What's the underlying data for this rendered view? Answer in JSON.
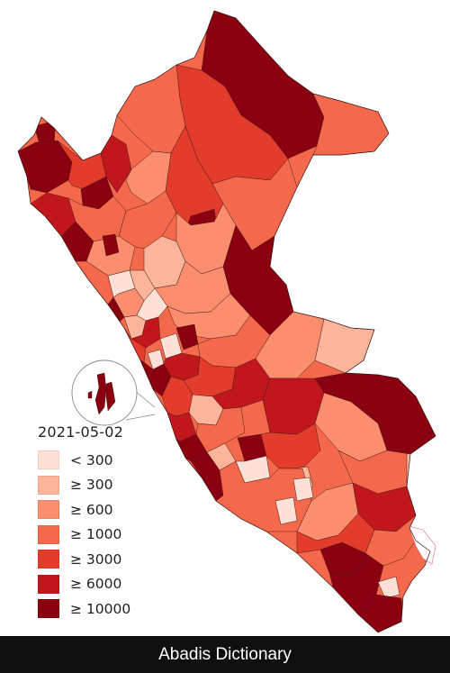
{
  "legend": {
    "title": "2021-05-02",
    "items": [
      {
        "label": "< 300",
        "color": "#fde0d6"
      },
      {
        "label": "≥ 300",
        "color": "#fcb59a"
      },
      {
        "label": "≥ 600",
        "color": "#fa8e6e"
      },
      {
        "label": "≥ 1000",
        "color": "#f4694b"
      },
      {
        "label": "≥ 3000",
        "color": "#e33b2c"
      },
      {
        "label": "≥ 6000",
        "color": "#c1161c"
      },
      {
        "label": "≥ 10000",
        "color": "#8b0011"
      }
    ]
  },
  "footer": {
    "text": "Abadis Dictionary"
  },
  "colors": {
    "inset_stroke": "#888888",
    "region_border": "#4a1d18",
    "footer_bg": "#0f0f0f"
  }
}
